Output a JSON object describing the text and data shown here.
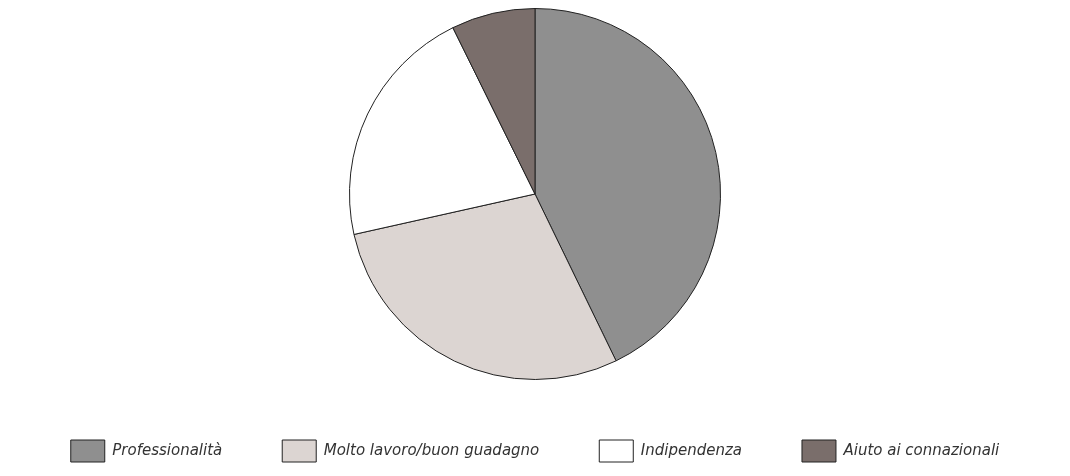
{
  "chart_data": {
    "type": "pie",
    "categories": [
      "Professionalità",
      "Molto lavoro/buon guadagno",
      "Indipendenza",
      "Aiuto ai connazionali"
    ],
    "values": [
      42.8,
      28.7,
      21.2,
      7.3
    ],
    "colors": [
      "#8f8f8f",
      "#dcd5d2",
      "#ffffff",
      "#7a6e6b"
    ],
    "legend": "bottom"
  }
}
